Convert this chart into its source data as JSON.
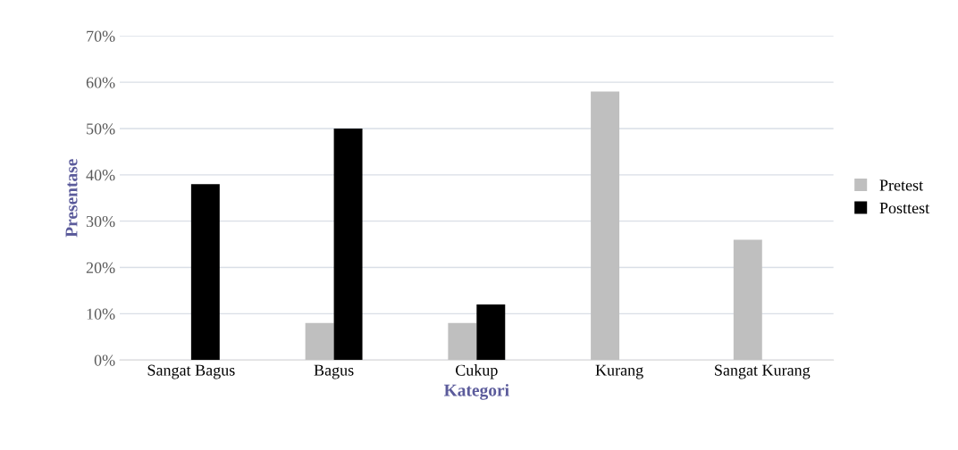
{
  "chart_data": {
    "type": "bar",
    "xlabel": "Kategori",
    "ylabel": "Presentase",
    "categories": [
      "Sangat Bagus",
      "Bagus",
      "Cukup",
      "Kurang",
      "Sangat Kurang"
    ],
    "series": [
      {
        "name": "Pretest",
        "color": "#bfbfbf",
        "values": [
          0,
          8,
          8,
          58,
          26
        ]
      },
      {
        "name": "Posttest",
        "color": "#000000",
        "values": [
          38,
          50,
          12,
          0,
          0
        ]
      }
    ],
    "ylim": [
      0,
      70
    ],
    "yticks": [
      {
        "value": 0,
        "label": "0%"
      },
      {
        "value": 10,
        "label": "10%"
      },
      {
        "value": 20,
        "label": "20%"
      },
      {
        "value": 30,
        "label": "30%"
      },
      {
        "value": 40,
        "label": "40%"
      },
      {
        "value": 50,
        "label": "50%"
      },
      {
        "value": 60,
        "label": "60%"
      },
      {
        "value": 70,
        "label": "70%"
      }
    ],
    "grid": "y",
    "legend": "right"
  }
}
